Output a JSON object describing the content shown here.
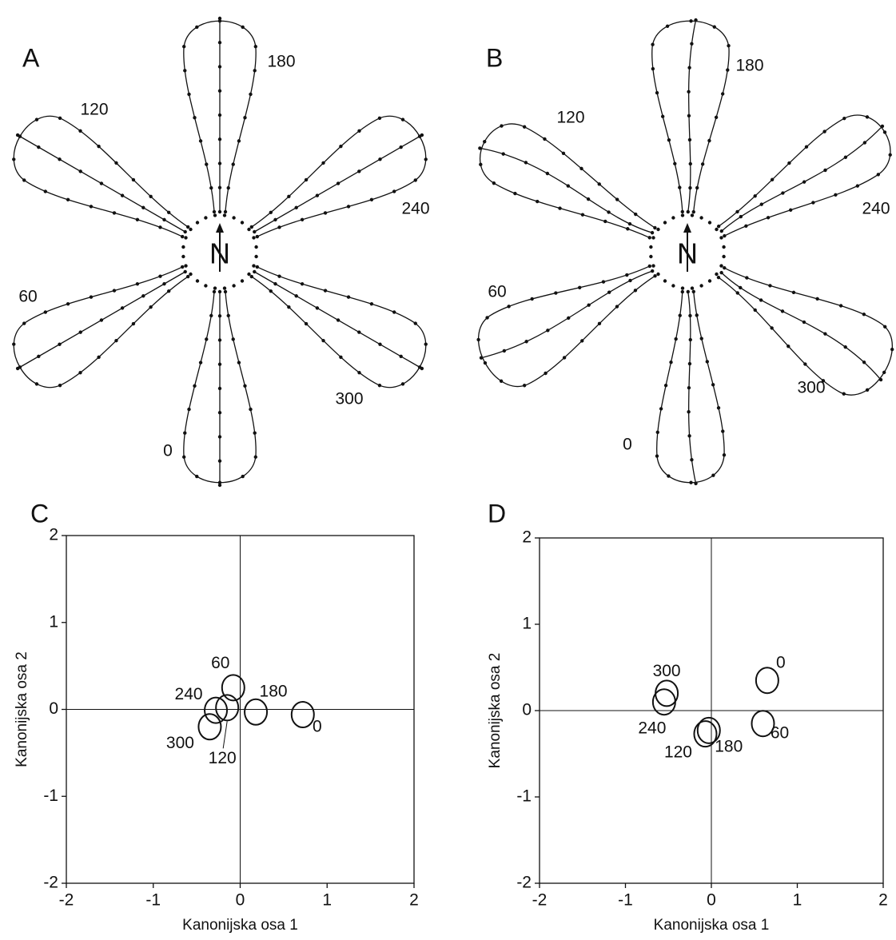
{
  "diagrams": [
    {
      "label": "A",
      "center": "N",
      "petal_labels": [
        "180",
        "240",
        "300",
        "0",
        "60",
        "120"
      ]
    },
    {
      "label": "B",
      "center": "N",
      "petal_labels": [
        "180",
        "240",
        "300",
        "0",
        "60",
        "120"
      ]
    }
  ],
  "chart_data": [
    {
      "type": "scatter",
      "label": "C",
      "xlabel": "Kanonijska osa 1",
      "ylabel": "Kanonijska osa 2",
      "xlim": [
        -2,
        2
      ],
      "ylim": [
        -2,
        2
      ],
      "xticks": [
        -2,
        -1,
        0,
        1,
        2
      ],
      "yticks": [
        -2,
        -1,
        0,
        1,
        2
      ],
      "point_labels": [
        "0",
        "60",
        "120",
        "180",
        "240",
        "300"
      ],
      "x": [
        0.72,
        -0.08,
        -0.15,
        0.18,
        -0.28,
        -0.35
      ],
      "values": [
        -0.06,
        0.25,
        0.02,
        -0.03,
        -0.01,
        -0.2
      ]
    },
    {
      "type": "scatter",
      "label": "D",
      "xlabel": "Kanonijska osa 1",
      "ylabel": "Kanonijska osa 2",
      "xlim": [
        -2,
        2
      ],
      "ylim": [
        -2,
        2
      ],
      "xticks": [
        -2,
        -1,
        0,
        1,
        2
      ],
      "yticks": [
        -2,
        -1,
        0,
        1,
        2
      ],
      "point_labels": [
        "0",
        "60",
        "120",
        "180",
        "240",
        "300"
      ],
      "x": [
        0.65,
        0.6,
        -0.07,
        -0.03,
        -0.55,
        -0.52
      ],
      "values": [
        0.35,
        -0.15,
        -0.27,
        -0.23,
        0.1,
        0.2
      ]
    }
  ]
}
